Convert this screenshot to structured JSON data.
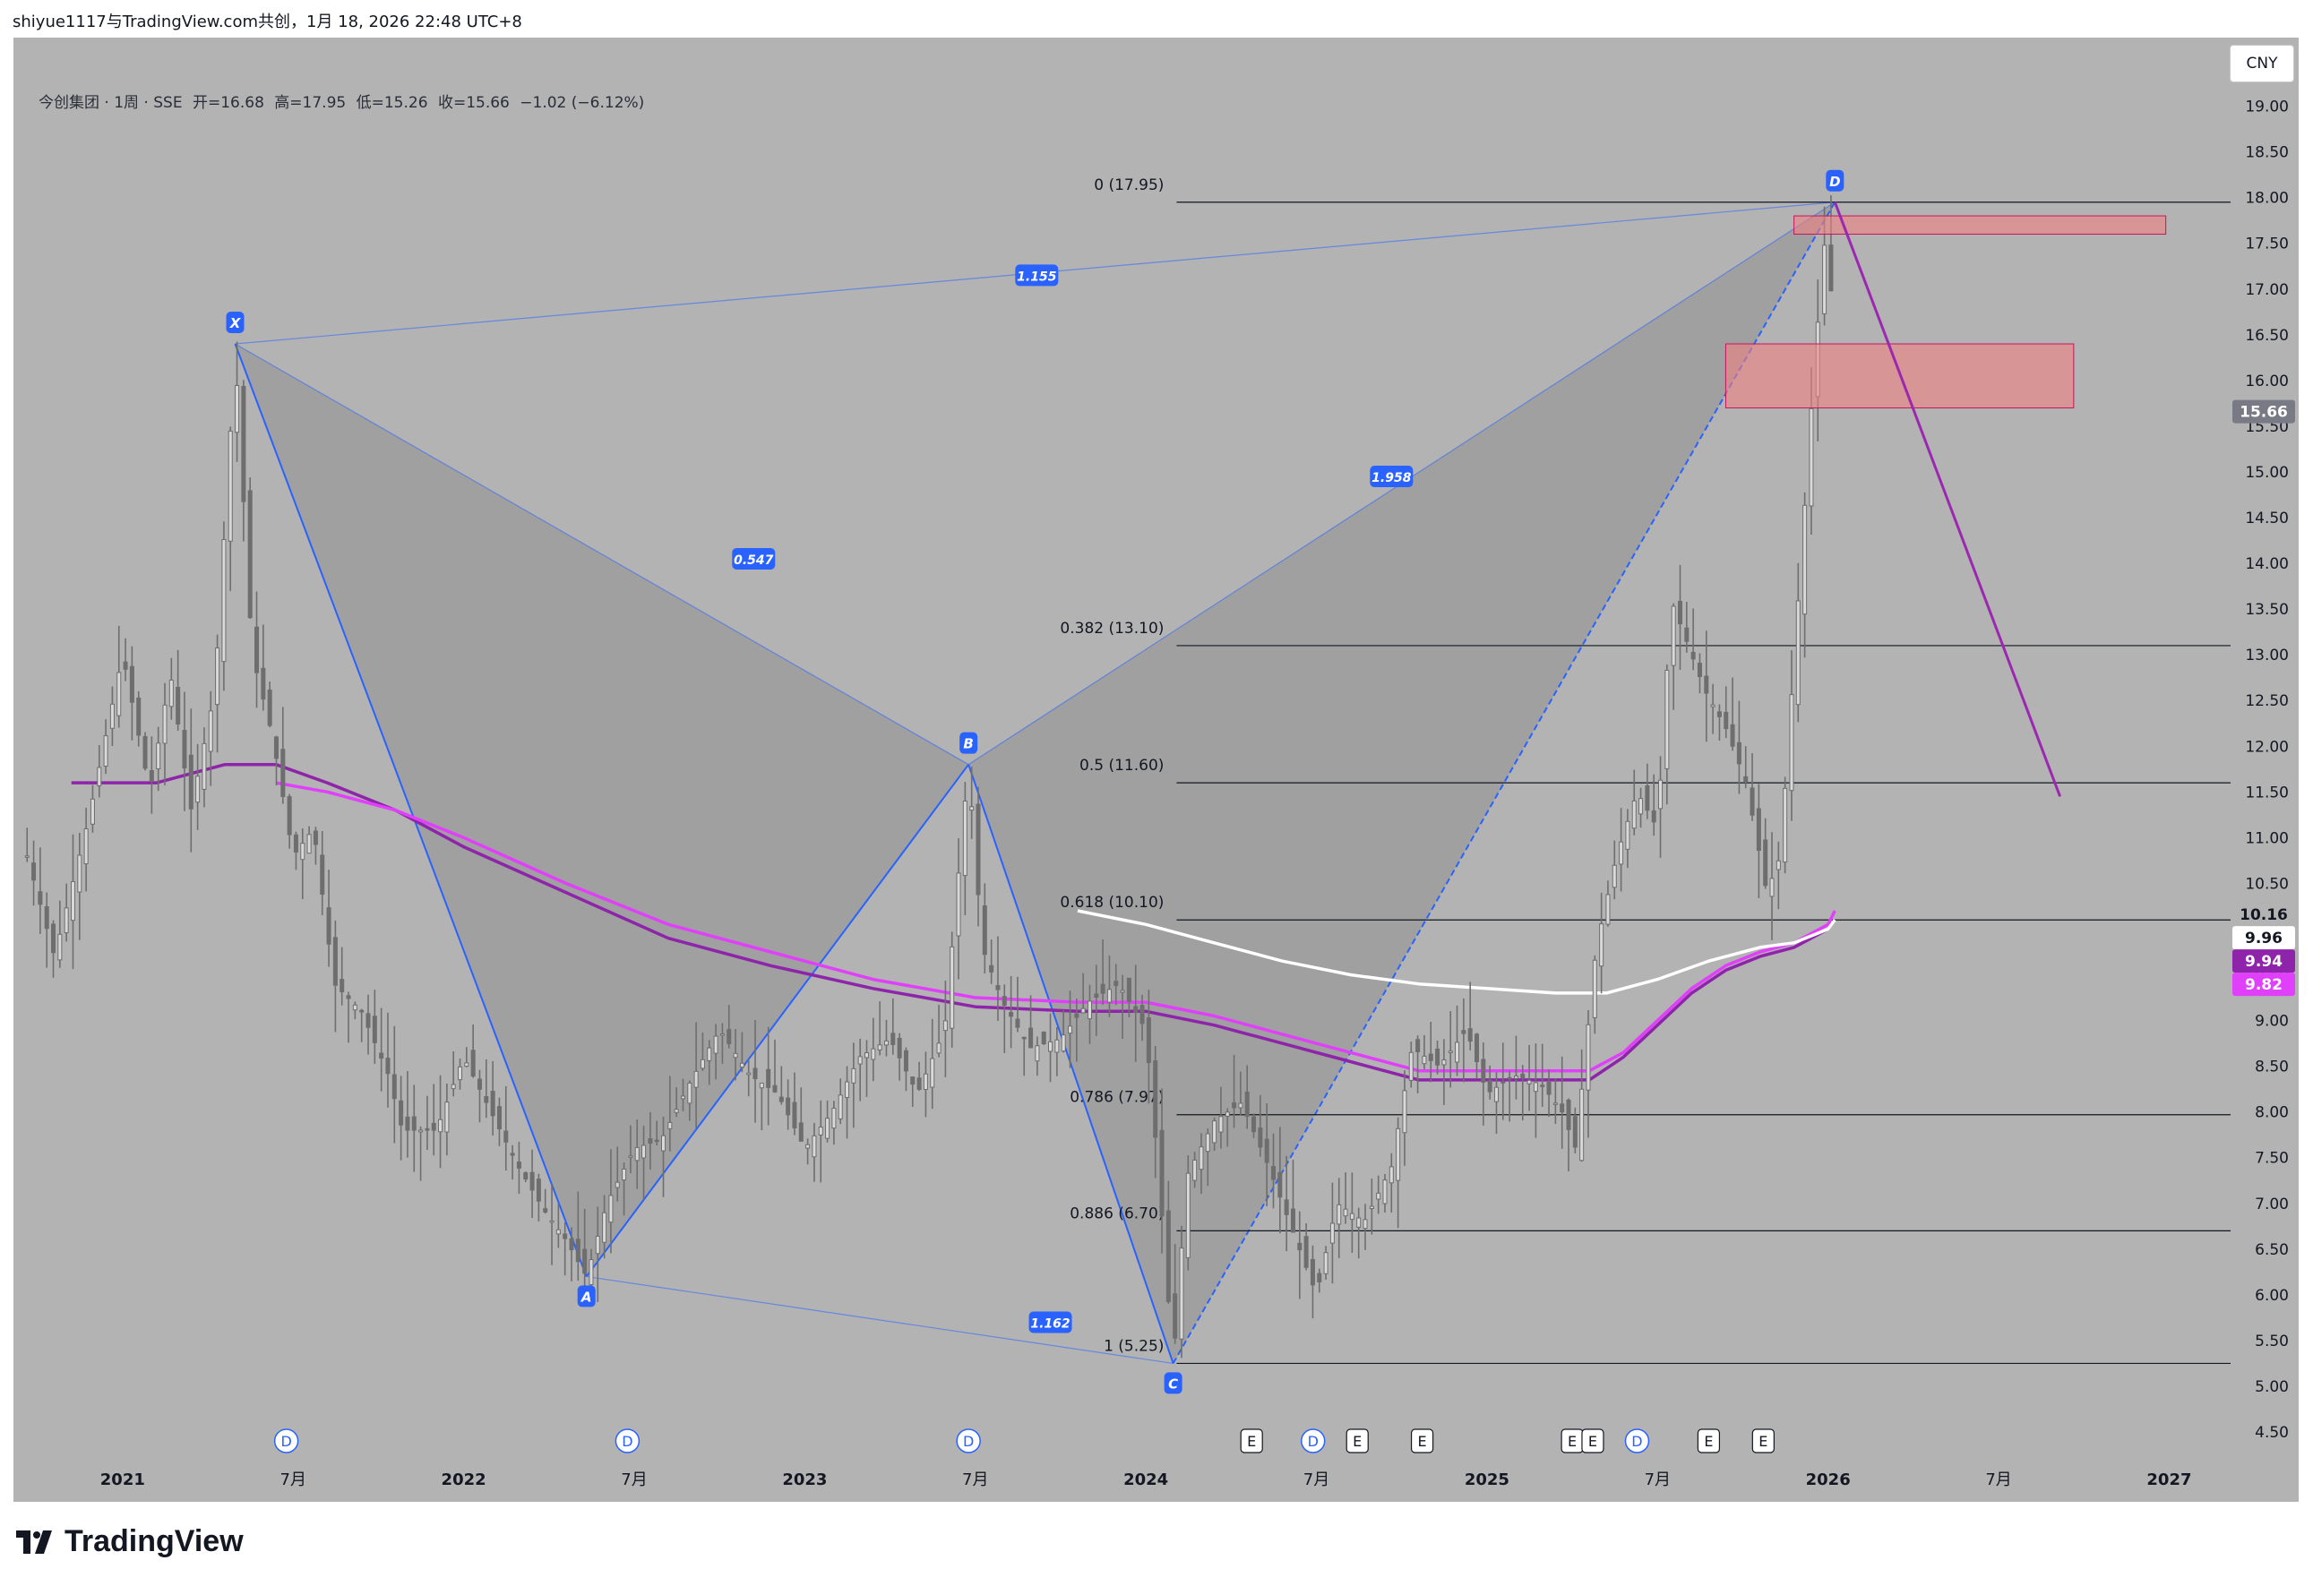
{
  "header": {
    "attribution": "shiyue1117与TradingView.com共创，1月 18, 2026 22:48 UTC+8"
  },
  "symbol": {
    "name": "今创集团 · 1周 · SSE",
    "open": "开=16.68",
    "high": "高=17.95",
    "low": "低=15.26",
    "close": "收=15.66",
    "change": "−1.02 (−6.12%)"
  },
  "currency_button": "CNY",
  "brand": "TradingView",
  "colors": {
    "background": "#b3b3b3",
    "pattern_line": "#2962ff",
    "pattern_fill": "#8a8a8a",
    "fib_line": "#131722",
    "projection": "#9c27b0",
    "ma_dark": "#8e24aa",
    "ma_pink": "#e040fb",
    "ma_white": "#ffffff",
    "zone_fill": "#f08080",
    "candle": "#6e6e6e"
  },
  "chart_data": {
    "type": "candlestick",
    "symbol": "今创集团",
    "interval": "1周",
    "exchange": "SSE",
    "ylim": [
      4.5,
      19.0
    ],
    "y_ticks": [
      "4.50",
      "5.00",
      "5.50",
      "6.00",
      "6.50",
      "7.00",
      "7.50",
      "8.00",
      "8.50",
      "9.00",
      "9.50",
      "10.00",
      "10.50",
      "11.00",
      "11.50",
      "12.00",
      "12.50",
      "13.00",
      "13.50",
      "14.00",
      "14.50",
      "15.00",
      "15.50",
      "16.00",
      "16.50",
      "17.00",
      "17.50",
      "18.00",
      "18.50",
      "19.00"
    ],
    "x_ticks": [
      {
        "t": 2021.0,
        "label": "2021",
        "bold": true
      },
      {
        "t": 2021.5,
        "label": "7月",
        "bold": false
      },
      {
        "t": 2022.0,
        "label": "2022",
        "bold": true
      },
      {
        "t": 2022.5,
        "label": "7月",
        "bold": false
      },
      {
        "t": 2023.0,
        "label": "2023",
        "bold": true
      },
      {
        "t": 2023.5,
        "label": "7月",
        "bold": false
      },
      {
        "t": 2024.0,
        "label": "2024",
        "bold": true
      },
      {
        "t": 2024.5,
        "label": "7月",
        "bold": false
      },
      {
        "t": 2025.0,
        "label": "2025",
        "bold": true
      },
      {
        "t": 2025.5,
        "label": "7月",
        "bold": false
      },
      {
        "t": 2026.0,
        "label": "2026",
        "bold": true
      },
      {
        "t": 2026.5,
        "label": "7月",
        "bold": false
      },
      {
        "t": 2027.0,
        "label": "2027",
        "bold": true
      }
    ],
    "price_path": [
      [
        2020.72,
        10.8
      ],
      [
        2020.8,
        9.7
      ],
      [
        2020.9,
        11.2
      ],
      [
        2021.0,
        13.0
      ],
      [
        2021.08,
        11.5
      ],
      [
        2021.14,
        12.8
      ],
      [
        2021.2,
        11.3
      ],
      [
        2021.27,
        12.6
      ],
      [
        2021.33,
        16.3
      ],
      [
        2021.38,
        13.0
      ],
      [
        2021.44,
        12.1
      ],
      [
        2021.5,
        10.8
      ],
      [
        2021.56,
        11.1
      ],
      [
        2021.62,
        9.4
      ],
      [
        2021.7,
        9.1
      ],
      [
        2021.78,
        8.4
      ],
      [
        2021.82,
        7.8
      ],
      [
        2021.92,
        7.8
      ],
      [
        2022.0,
        8.6
      ],
      [
        2022.08,
        8.0
      ],
      [
        2022.16,
        7.4
      ],
      [
        2022.24,
        6.9
      ],
      [
        2022.3,
        6.6
      ],
      [
        2022.36,
        6.2
      ],
      [
        2022.42,
        7.0
      ],
      [
        2022.5,
        7.6
      ],
      [
        2022.58,
        7.7
      ],
      [
        2022.66,
        8.3
      ],
      [
        2022.75,
        8.9
      ],
      [
        2022.84,
        8.4
      ],
      [
        2022.92,
        8.2
      ],
      [
        2023.0,
        7.6
      ],
      [
        2023.08,
        8.0
      ],
      [
        2023.16,
        8.6
      ],
      [
        2023.25,
        8.8
      ],
      [
        2023.33,
        8.2
      ],
      [
        2023.41,
        8.9
      ],
      [
        2023.46,
        11.0
      ],
      [
        2023.48,
        11.8
      ],
      [
        2023.52,
        9.8
      ],
      [
        2023.58,
        9.2
      ],
      [
        2023.66,
        8.7
      ],
      [
        2023.75,
        8.8
      ],
      [
        2023.83,
        9.2
      ],
      [
        2023.92,
        9.4
      ],
      [
        2024.0,
        8.9
      ],
      [
        2024.04,
        7.2
      ],
      [
        2024.08,
        5.25
      ],
      [
        2024.12,
        7.3
      ],
      [
        2024.2,
        7.9
      ],
      [
        2024.28,
        8.1
      ],
      [
        2024.36,
        7.4
      ],
      [
        2024.44,
        6.6
      ],
      [
        2024.5,
        6.0
      ],
      [
        2024.56,
        7.0
      ],
      [
        2024.64,
        6.8
      ],
      [
        2024.72,
        7.4
      ],
      [
        2024.78,
        8.7
      ],
      [
        2024.86,
        8.5
      ],
      [
        2024.94,
        8.9
      ],
      [
        2025.0,
        8.2
      ],
      [
        2025.08,
        8.4
      ],
      [
        2025.16,
        8.3
      ],
      [
        2025.22,
        8.0
      ],
      [
        2025.26,
        7.6
      ],
      [
        2025.32,
        9.8
      ],
      [
        2025.38,
        10.8
      ],
      [
        2025.44,
        11.5
      ],
      [
        2025.5,
        11.1
      ],
      [
        2025.54,
        13.6
      ],
      [
        2025.58,
        13.2
      ],
      [
        2025.64,
        12.6
      ],
      [
        2025.7,
        12.2
      ],
      [
        2025.76,
        11.6
      ],
      [
        2025.82,
        10.4
      ],
      [
        2025.86,
        10.8
      ],
      [
        2025.92,
        14.0
      ],
      [
        2025.96,
        16.2
      ],
      [
        2026.0,
        17.95
      ],
      [
        2026.02,
        15.66
      ]
    ],
    "moving_averages": [
      {
        "color": "#8e24aa",
        "points": [
          [
            2020.85,
            11.6
          ],
          [
            2020.95,
            11.6
          ],
          [
            2021.1,
            11.6
          ],
          [
            2021.3,
            11.8
          ],
          [
            2021.45,
            11.8
          ],
          [
            2021.6,
            11.6
          ],
          [
            2021.8,
            11.3
          ],
          [
            2022.0,
            10.9
          ],
          [
            2022.3,
            10.4
          ],
          [
            2022.6,
            9.9
          ],
          [
            2022.9,
            9.6
          ],
          [
            2023.2,
            9.35
          ],
          [
            2023.5,
            9.15
          ],
          [
            2023.8,
            9.1
          ],
          [
            2024.0,
            9.1
          ],
          [
            2024.2,
            8.95
          ],
          [
            2024.4,
            8.75
          ],
          [
            2024.6,
            8.55
          ],
          [
            2024.8,
            8.35
          ],
          [
            2025.0,
            8.35
          ],
          [
            2025.2,
            8.35
          ],
          [
            2025.3,
            8.35
          ],
          [
            2025.4,
            8.6
          ],
          [
            2025.5,
            8.95
          ],
          [
            2025.6,
            9.3
          ],
          [
            2025.7,
            9.55
          ],
          [
            2025.8,
            9.7
          ],
          [
            2025.9,
            9.8
          ],
          [
            2026.0,
            10.0
          ],
          [
            2026.02,
            10.1
          ]
        ]
      },
      {
        "color": "#e040fb",
        "points": [
          [
            2021.45,
            11.6
          ],
          [
            2021.6,
            11.5
          ],
          [
            2021.8,
            11.3
          ],
          [
            2022.0,
            11.0
          ],
          [
            2022.3,
            10.5
          ],
          [
            2022.6,
            10.05
          ],
          [
            2022.9,
            9.75
          ],
          [
            2023.2,
            9.45
          ],
          [
            2023.5,
            9.25
          ],
          [
            2023.8,
            9.2
          ],
          [
            2024.0,
            9.2
          ],
          [
            2024.2,
            9.05
          ],
          [
            2024.4,
            8.85
          ],
          [
            2024.6,
            8.65
          ],
          [
            2024.8,
            8.45
          ],
          [
            2025.0,
            8.45
          ],
          [
            2025.2,
            8.45
          ],
          [
            2025.3,
            8.45
          ],
          [
            2025.4,
            8.65
          ],
          [
            2025.5,
            9.0
          ],
          [
            2025.6,
            9.35
          ],
          [
            2025.7,
            9.6
          ],
          [
            2025.8,
            9.75
          ],
          [
            2025.9,
            9.85
          ],
          [
            2026.0,
            10.05
          ],
          [
            2026.02,
            10.2
          ]
        ]
      },
      {
        "color": "#ffffff",
        "points": [
          [
            2023.8,
            10.2
          ],
          [
            2024.0,
            10.05
          ],
          [
            2024.2,
            9.85
          ],
          [
            2024.4,
            9.65
          ],
          [
            2024.6,
            9.5
          ],
          [
            2024.8,
            9.4
          ],
          [
            2025.0,
            9.35
          ],
          [
            2025.2,
            9.3
          ],
          [
            2025.35,
            9.3
          ],
          [
            2025.5,
            9.45
          ],
          [
            2025.65,
            9.65
          ],
          [
            2025.8,
            9.8
          ],
          [
            2025.9,
            9.85
          ],
          [
            2026.0,
            10.0
          ],
          [
            2026.02,
            10.1
          ]
        ]
      }
    ],
    "harmonic_pattern": {
      "points": [
        {
          "label": "X",
          "t": 2021.33,
          "v": 16.4
        },
        {
          "label": "A",
          "t": 2022.36,
          "v": 6.2
        },
        {
          "label": "B",
          "t": 2023.48,
          "v": 11.8
        },
        {
          "label": "C",
          "t": 2024.08,
          "v": 5.25
        },
        {
          "label": "D",
          "t": 2026.02,
          "v": 17.95
        }
      ],
      "ratios": [
        {
          "text": "0.547",
          "t": 2022.85,
          "v": 14.05
        },
        {
          "text": "1.162",
          "t": 2023.72,
          "v": 5.7
        },
        {
          "text": "1.958",
          "t": 2024.72,
          "v": 14.95
        },
        {
          "text": "1.155",
          "t": 2023.68,
          "v": 17.15
        }
      ]
    },
    "fib_levels": [
      {
        "label": "0 (17.95)",
        "v": 17.95
      },
      {
        "label": "0.382 (13.10)",
        "v": 13.1
      },
      {
        "label": "0.5 (11.60)",
        "v": 11.6
      },
      {
        "label": "0.618 (10.10)",
        "v": 10.1
      },
      {
        "label": "0.786 (7.97)",
        "v": 7.97
      },
      {
        "label": "0.886 (6.70)",
        "v": 6.7
      },
      {
        "label": "1 (5.25)",
        "v": 5.25
      }
    ],
    "zones": [
      {
        "t0": 2025.9,
        "t1": 2026.99,
        "v0": 17.6,
        "v1": 17.8
      },
      {
        "t0": 2025.7,
        "t1": 2026.72,
        "v0": 15.7,
        "v1": 16.4
      }
    ],
    "projection": {
      "from": [
        2026.02,
        17.95
      ],
      "to": [
        2026.68,
        11.45
      ]
    },
    "price_labels": [
      {
        "text": "15.66",
        "v": 15.66,
        "bg": "#787b86",
        "fg": "#ffffff"
      },
      {
        "text": "10.16",
        "v": 10.16,
        "bg": "#b3b3b3",
        "fg": "#131722"
      },
      {
        "text": "9.96",
        "v": 9.96,
        "bg": "#ffffff",
        "fg": "#131722"
      },
      {
        "text": "9.94",
        "v": 9.94,
        "bg": "#8e24aa",
        "fg": "#ffffff"
      },
      {
        "text": "9.82",
        "v": 9.82,
        "bg": "#e040fb",
        "fg": "#ffffff"
      }
    ],
    "events": [
      {
        "t": 2021.48,
        "label": "D"
      },
      {
        "t": 2022.48,
        "label": "D"
      },
      {
        "t": 2023.48,
        "label": "D"
      },
      {
        "t": 2024.31,
        "label": "E"
      },
      {
        "t": 2024.49,
        "label": "D"
      },
      {
        "t": 2024.62,
        "label": "E"
      },
      {
        "t": 2024.81,
        "label": "E"
      },
      {
        "t": 2025.25,
        "label": "E"
      },
      {
        "t": 2025.31,
        "label": "E"
      },
      {
        "t": 2025.44,
        "label": "D"
      },
      {
        "t": 2025.65,
        "label": "E"
      },
      {
        "t": 2025.81,
        "label": "E"
      }
    ]
  }
}
